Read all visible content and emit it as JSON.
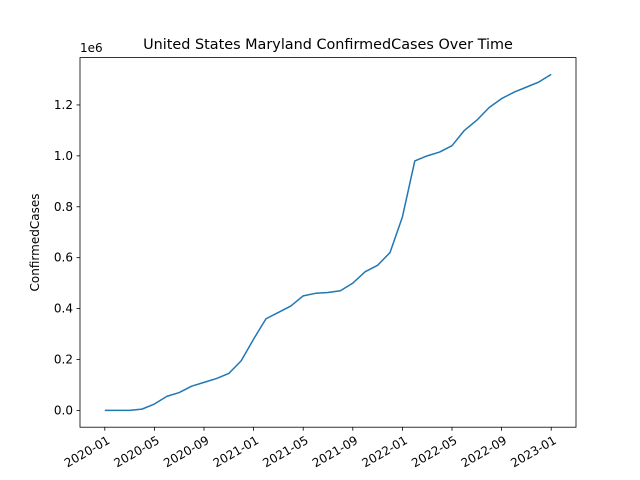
{
  "chart_data": {
    "type": "line",
    "title": "United States Maryland ConfirmedCases Over Time",
    "ylabel": "ConfirmedCases",
    "y_offset_label": "1e6",
    "x": [
      "2020-01",
      "2020-02",
      "2020-03",
      "2020-04",
      "2020-05",
      "2020-06",
      "2020-07",
      "2020-08",
      "2020-09",
      "2020-10",
      "2020-11",
      "2020-12",
      "2021-01",
      "2021-02",
      "2021-03",
      "2021-04",
      "2021-05",
      "2021-06",
      "2021-07",
      "2021-08",
      "2021-09",
      "2021-10",
      "2021-11",
      "2021-12",
      "2022-01",
      "2022-02",
      "2022-03",
      "2022-04",
      "2022-05",
      "2022-06",
      "2022-07",
      "2022-08",
      "2022-09",
      "2022-10",
      "2022-11",
      "2022-12",
      "2023-01"
    ],
    "series": [
      {
        "name": "ConfirmedCases",
        "color": "#1f77b4",
        "values": [
          0,
          0,
          0,
          5000,
          25000,
          55000,
          70000,
          95000,
          110000,
          125000,
          145000,
          195000,
          280000,
          360000,
          385000,
          410000,
          450000,
          460000,
          463000,
          470000,
          500000,
          545000,
          570000,
          620000,
          760000,
          980000,
          1000000,
          1015000,
          1040000,
          1100000,
          1140000,
          1190000,
          1225000,
          1250000,
          1270000,
          1290000,
          1320000
        ]
      }
    ],
    "xlim": [
      "2019-11",
      "2023-03"
    ],
    "xticks": [
      "2020-01",
      "2020-05",
      "2020-09",
      "2021-01",
      "2021-05",
      "2021-09",
      "2022-01",
      "2022-05",
      "2022-09",
      "2023-01"
    ],
    "ylim": [
      -66000,
      1386000
    ],
    "yticks": [
      {
        "value": 0,
        "label": "0.0"
      },
      {
        "value": 200000,
        "label": "0.2"
      },
      {
        "value": 400000,
        "label": "0.4"
      },
      {
        "value": 600000,
        "label": "0.6"
      },
      {
        "value": 800000,
        "label": "0.8"
      },
      {
        "value": 1000000,
        "label": "1.0"
      },
      {
        "value": 1200000,
        "label": "1.2"
      }
    ],
    "grid": false
  }
}
